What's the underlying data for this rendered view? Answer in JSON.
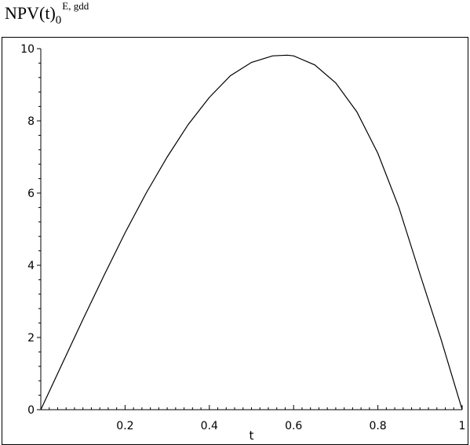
{
  "title": {
    "main": "NPV(t)",
    "subscript": "0",
    "superscript": "E, gdd"
  },
  "chart_data": {
    "type": "line",
    "title": "NPV(t)0 E, gdd",
    "xlabel": "t",
    "ylabel": "",
    "xlim": [
      0,
      1
    ],
    "ylim": [
      0,
      10
    ],
    "grid": false,
    "x_ticks": [
      0.2,
      0.4,
      0.6,
      0.8,
      1
    ],
    "x_tick_labels": [
      "0.2",
      "0.4",
      "0.6",
      "0.8",
      "1"
    ],
    "y_ticks": [
      0,
      2,
      4,
      6,
      8,
      10
    ],
    "y_tick_labels": [
      "0",
      "2",
      "4",
      "6",
      "8",
      "10"
    ],
    "series": [
      {
        "color": "#000000",
        "x": [
          0,
          0.05,
          0.1,
          0.15,
          0.2,
          0.25,
          0.3,
          0.35,
          0.4,
          0.45,
          0.5,
          0.55,
          0.585,
          0.6,
          0.65,
          0.7,
          0.75,
          0.8,
          0.85,
          0.9,
          0.95,
          1
        ],
        "y": [
          0,
          1.25,
          2.5,
          3.72,
          4.9,
          6.0,
          7.0,
          7.9,
          8.65,
          9.25,
          9.62,
          9.8,
          9.82,
          9.8,
          9.55,
          9.05,
          8.25,
          7.1,
          5.6,
          3.75,
          1.95,
          0
        ]
      }
    ]
  }
}
